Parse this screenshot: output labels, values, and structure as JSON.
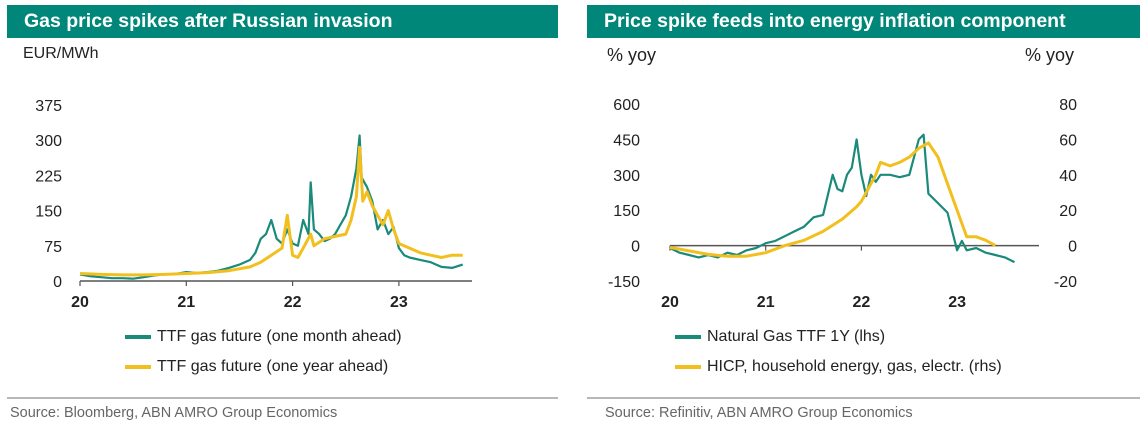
{
  "colors": {
    "teal": "#1a8a7a",
    "yellow": "#f2c01e",
    "header": "#00877a",
    "axis": "#555555"
  },
  "chart_data": [
    {
      "type": "line",
      "title": "Gas price spikes after Russian invasion",
      "ylabel": "EUR/MWh",
      "xlabel": "",
      "xticks": [
        "20",
        "21",
        "22",
        "23"
      ],
      "yticks": [
        "0",
        "75",
        "150",
        "225",
        "300",
        "375"
      ],
      "ylim": [
        0,
        375
      ],
      "xlim": [
        2020.0,
        2023.6
      ],
      "grid": false,
      "legend": "bottom",
      "source": "Source: Bloomberg, ABN AMRO Group Economics",
      "series": [
        {
          "name": "TTF gas future (one month ahead)",
          "color": "teal",
          "x": [
            2020.0,
            2020.1,
            2020.2,
            2020.3,
            2020.4,
            2020.5,
            2020.6,
            2020.7,
            2020.8,
            2020.9,
            2021.0,
            2021.1,
            2021.2,
            2021.3,
            2021.4,
            2021.5,
            2021.6,
            2021.65,
            2021.7,
            2021.75,
            2021.8,
            2021.85,
            2021.9,
            2021.95,
            2022.0,
            2022.05,
            2022.1,
            2022.15,
            2022.17,
            2022.2,
            2022.25,
            2022.3,
            2022.35,
            2022.4,
            2022.45,
            2022.5,
            2022.55,
            2022.6,
            2022.63,
            2022.65,
            2022.7,
            2022.75,
            2022.8,
            2022.85,
            2022.9,
            2022.95,
            2023.0,
            2023.05,
            2023.1,
            2023.2,
            2023.3,
            2023.4,
            2023.5,
            2023.6
          ],
          "y": [
            14,
            10,
            8,
            6,
            6,
            5,
            8,
            12,
            14,
            15,
            19,
            17,
            19,
            22,
            28,
            35,
            45,
            60,
            90,
            100,
            130,
            90,
            80,
            110,
            80,
            75,
            130,
            100,
            210,
            110,
            100,
            85,
            90,
            100,
            120,
            140,
            180,
            240,
            310,
            220,
            200,
            170,
            110,
            130,
            100,
            115,
            70,
            55,
            50,
            45,
            40,
            30,
            28,
            35
          ]
        },
        {
          "name": "TTF gas future (one year ahead)",
          "color": "yellow",
          "x": [
            2020.0,
            2020.2,
            2020.4,
            2020.6,
            2020.8,
            2021.0,
            2021.2,
            2021.4,
            2021.6,
            2021.7,
            2021.8,
            2021.9,
            2021.95,
            2022.0,
            2022.05,
            2022.1,
            2022.17,
            2022.2,
            2022.3,
            2022.4,
            2022.5,
            2022.55,
            2022.6,
            2022.63,
            2022.66,
            2022.7,
            2022.75,
            2022.8,
            2022.85,
            2022.9,
            2022.95,
            2023.0,
            2023.1,
            2023.2,
            2023.3,
            2023.4,
            2023.5,
            2023.6
          ],
          "y": [
            16,
            14,
            13,
            13,
            14,
            16,
            18,
            22,
            30,
            40,
            55,
            70,
            140,
            55,
            50,
            70,
            100,
            75,
            90,
            95,
            100,
            130,
            180,
            285,
            170,
            190,
            160,
            140,
            120,
            150,
            110,
            80,
            70,
            60,
            55,
            50,
            55,
            55
          ]
        }
      ]
    },
    {
      "type": "line",
      "title": "Price spike feeds into energy inflation component",
      "ylabel": "% yoy",
      "y2label": "% yoy",
      "xticks": [
        "20",
        "21",
        "22",
        "23"
      ],
      "yticks": [
        "-150",
        "0",
        "150",
        "300",
        "450",
        "600"
      ],
      "y2ticks": [
        "-20",
        "0",
        "20",
        "40",
        "60",
        "80"
      ],
      "ylim": [
        -150,
        600
      ],
      "y2lim": [
        -20,
        80
      ],
      "xlim": [
        2020.0,
        2023.75
      ],
      "grid": false,
      "legend": "bottom",
      "source": "Source: Refinitiv, ABN AMRO Group Economics",
      "series": [
        {
          "name": "Natural Gas TTF 1Y (lhs)",
          "color": "teal",
          "axis": "left",
          "x": [
            2020.0,
            2020.1,
            2020.2,
            2020.3,
            2020.4,
            2020.5,
            2020.6,
            2020.7,
            2020.8,
            2020.9,
            2021.0,
            2021.1,
            2021.2,
            2021.3,
            2021.4,
            2021.5,
            2021.6,
            2021.7,
            2021.75,
            2021.8,
            2021.85,
            2021.9,
            2021.95,
            2022.0,
            2022.05,
            2022.1,
            2022.15,
            2022.2,
            2022.3,
            2022.4,
            2022.5,
            2022.6,
            2022.65,
            2022.7,
            2022.8,
            2022.9,
            2023.0,
            2023.05,
            2023.1,
            2023.2,
            2023.3,
            2023.4,
            2023.5,
            2023.6
          ],
          "y": [
            -10,
            -30,
            -40,
            -50,
            -40,
            -50,
            -30,
            -40,
            -20,
            -10,
            10,
            20,
            40,
            60,
            80,
            120,
            130,
            300,
            240,
            230,
            300,
            330,
            450,
            300,
            210,
            300,
            270,
            300,
            300,
            290,
            300,
            450,
            470,
            220,
            180,
            140,
            -20,
            20,
            -20,
            -10,
            -30,
            -40,
            -50,
            -70
          ]
        },
        {
          "name": "HICP, household energy, gas, electr. (rhs)",
          "color": "yellow",
          "axis": "right",
          "x": [
            2020.0,
            2020.2,
            2020.4,
            2020.6,
            2020.8,
            2021.0,
            2021.2,
            2021.4,
            2021.6,
            2021.8,
            2021.95,
            2022.0,
            2022.1,
            2022.15,
            2022.2,
            2022.3,
            2022.4,
            2022.5,
            2022.6,
            2022.7,
            2022.8,
            2022.9,
            2023.0,
            2023.1,
            2023.2,
            2023.3,
            2023.4
          ],
          "y": [
            -1,
            -3,
            -5,
            -6,
            -6,
            -4,
            0,
            3,
            8,
            15,
            22,
            25,
            35,
            40,
            47,
            45,
            47,
            50,
            55,
            58,
            50,
            35,
            20,
            5,
            5,
            3,
            0
          ]
        }
      ]
    }
  ],
  "legend_labels": {
    "left": [
      "TTF gas future (one month ahead)",
      "TTF gas future (one year ahead)"
    ],
    "right": [
      "Natural Gas TTF 1Y (lhs)",
      "HICP, household energy, gas, electr. (rhs)"
    ]
  }
}
